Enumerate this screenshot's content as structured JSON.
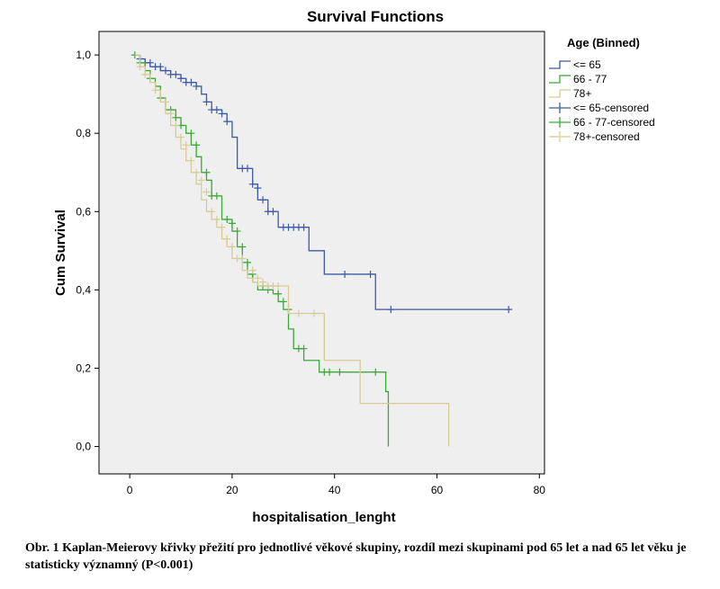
{
  "chart_data": {
    "type": "line",
    "title": "Survival Functions",
    "xlabel": "hospitalisation_lenght",
    "ylabel": "Cum Survival",
    "xlim": [
      -6,
      81
    ],
    "ylim": [
      -0.07,
      1.06
    ],
    "x_ticks": [
      0,
      20,
      40,
      60,
      80
    ],
    "x_tick_labels": [
      "0",
      "20",
      "40",
      "60",
      "80"
    ],
    "y_ticks": [
      0,
      0.2,
      0.4,
      0.6,
      0.8,
      1.0
    ],
    "y_tick_labels": [
      "0,0",
      "0,2",
      "0,4",
      "0,6",
      "0,8",
      "1,0"
    ],
    "legend_title": "Age (Binned)",
    "legend_position": "right",
    "legend": [
      {
        "label": "<= 65",
        "kind": "line",
        "color": "#3f5aa6"
      },
      {
        "label": "66 - 77",
        "kind": "line",
        "color": "#3aa935"
      },
      {
        "label": "78+",
        "kind": "line",
        "color": "#d8cc96"
      },
      {
        "label": "<= 65-censored",
        "kind": "plus",
        "color": "#3f5aa6"
      },
      {
        "label": "66 - 77-censored",
        "kind": "plus",
        "color": "#3aa935"
      },
      {
        "label": "78+-censored",
        "kind": "plus",
        "color": "#d8cc96"
      }
    ],
    "series": [
      {
        "name": "<= 65",
        "color": "#3f5aa6",
        "steps": [
          [
            1,
            1.0
          ],
          [
            2,
            0.99
          ],
          [
            3,
            0.98
          ],
          [
            4,
            0.97
          ],
          [
            6,
            0.96
          ],
          [
            8,
            0.95
          ],
          [
            10,
            0.94
          ],
          [
            11,
            0.93
          ],
          [
            13,
            0.92
          ],
          [
            14,
            0.9
          ],
          [
            15,
            0.88
          ],
          [
            16,
            0.86
          ],
          [
            18,
            0.85
          ],
          [
            19,
            0.83
          ],
          [
            20,
            0.79
          ],
          [
            21,
            0.71
          ],
          [
            24,
            0.67
          ],
          [
            25,
            0.63
          ],
          [
            27,
            0.6
          ],
          [
            29,
            0.56
          ],
          [
            35,
            0.5
          ],
          [
            38,
            0.44
          ],
          [
            48,
            0.35
          ],
          [
            74,
            0.35
          ]
        ],
        "censored": [
          [
            2,
            0.99
          ],
          [
            3,
            0.98
          ],
          [
            4,
            0.98
          ],
          [
            5,
            0.97
          ],
          [
            6,
            0.97
          ],
          [
            7,
            0.96
          ],
          [
            8,
            0.95
          ],
          [
            9,
            0.95
          ],
          [
            10,
            0.94
          ],
          [
            11,
            0.93
          ],
          [
            12,
            0.93
          ],
          [
            13,
            0.92
          ],
          [
            15,
            0.88
          ],
          [
            16,
            0.86
          ],
          [
            17,
            0.86
          ],
          [
            18,
            0.85
          ],
          [
            19,
            0.83
          ],
          [
            22,
            0.71
          ],
          [
            23,
            0.71
          ],
          [
            24,
            0.67
          ],
          [
            25,
            0.66
          ],
          [
            26,
            0.63
          ],
          [
            27,
            0.6
          ],
          [
            28,
            0.6
          ],
          [
            30,
            0.56
          ],
          [
            31,
            0.56
          ],
          [
            32,
            0.56
          ],
          [
            33,
            0.56
          ],
          [
            34,
            0.56
          ],
          [
            42,
            0.44
          ],
          [
            47,
            0.44
          ],
          [
            51,
            0.35
          ],
          [
            74,
            0.35
          ]
        ]
      },
      {
        "name": "66 - 77",
        "color": "#3aa935",
        "steps": [
          [
            1,
            1.0
          ],
          [
            2,
            0.98
          ],
          [
            3,
            0.96
          ],
          [
            4,
            0.94
          ],
          [
            5,
            0.92
          ],
          [
            6,
            0.89
          ],
          [
            7,
            0.86
          ],
          [
            9,
            0.84
          ],
          [
            10,
            0.82
          ],
          [
            11,
            0.8
          ],
          [
            12,
            0.77
          ],
          [
            13,
            0.74
          ],
          [
            14,
            0.7
          ],
          [
            15,
            0.68
          ],
          [
            16,
            0.64
          ],
          [
            18,
            0.58
          ],
          [
            20,
            0.55
          ],
          [
            21,
            0.51
          ],
          [
            22,
            0.47
          ],
          [
            23,
            0.44
          ],
          [
            24,
            0.42
          ],
          [
            25,
            0.4
          ],
          [
            28,
            0.39
          ],
          [
            29,
            0.37
          ],
          [
            30,
            0.35
          ],
          [
            31,
            0.3
          ],
          [
            32,
            0.25
          ],
          [
            34,
            0.22
          ],
          [
            37,
            0.19
          ],
          [
            50,
            0.14
          ],
          [
            50.5,
            0.0
          ]
        ],
        "censored": [
          [
            1,
            1.0
          ],
          [
            2,
            0.98
          ],
          [
            4,
            0.94
          ],
          [
            6,
            0.89
          ],
          [
            8,
            0.86
          ],
          [
            9,
            0.84
          ],
          [
            10,
            0.82
          ],
          [
            12,
            0.8
          ],
          [
            13,
            0.77
          ],
          [
            15,
            0.7
          ],
          [
            16,
            0.64
          ],
          [
            17,
            0.64
          ],
          [
            19,
            0.58
          ],
          [
            20,
            0.57
          ],
          [
            21,
            0.55
          ],
          [
            22,
            0.51
          ],
          [
            23,
            0.47
          ],
          [
            24,
            0.44
          ],
          [
            26,
            0.41
          ],
          [
            27,
            0.4
          ],
          [
            29,
            0.39
          ],
          [
            30,
            0.37
          ],
          [
            31,
            0.35
          ],
          [
            33,
            0.25
          ],
          [
            34,
            0.25
          ],
          [
            38,
            0.19
          ],
          [
            39,
            0.19
          ],
          [
            41,
            0.19
          ],
          [
            48,
            0.19
          ]
        ]
      },
      {
        "name": "78+",
        "color": "#d8cc96",
        "steps": [
          [
            1,
            1.0
          ],
          [
            2,
            0.97
          ],
          [
            3,
            0.95
          ],
          [
            4,
            0.93
          ],
          [
            5,
            0.91
          ],
          [
            6,
            0.88
          ],
          [
            7,
            0.85
          ],
          [
            8,
            0.82
          ],
          [
            9,
            0.79
          ],
          [
            10,
            0.76
          ],
          [
            11,
            0.73
          ],
          [
            12,
            0.7
          ],
          [
            13,
            0.67
          ],
          [
            14,
            0.63
          ],
          [
            15,
            0.6
          ],
          [
            16,
            0.58
          ],
          [
            17,
            0.56
          ],
          [
            18,
            0.53
          ],
          [
            19,
            0.51
          ],
          [
            20,
            0.48
          ],
          [
            22,
            0.45
          ],
          [
            23,
            0.43
          ],
          [
            24,
            0.42
          ],
          [
            25,
            0.41
          ],
          [
            31,
            0.34
          ],
          [
            38,
            0.22
          ],
          [
            45,
            0.11
          ],
          [
            62,
            0.11
          ],
          [
            62.3,
            0.0
          ]
        ],
        "censored": [
          [
            2,
            0.97
          ],
          [
            3,
            0.95
          ],
          [
            5,
            0.91
          ],
          [
            7,
            0.88
          ],
          [
            8,
            0.85
          ],
          [
            9,
            0.82
          ],
          [
            10,
            0.79
          ],
          [
            11,
            0.77
          ],
          [
            12,
            0.73
          ],
          [
            13,
            0.7
          ],
          [
            14,
            0.68
          ],
          [
            15,
            0.65
          ],
          [
            16,
            0.6
          ],
          [
            17,
            0.58
          ],
          [
            18,
            0.56
          ],
          [
            19,
            0.53
          ],
          [
            20,
            0.51
          ],
          [
            21,
            0.48
          ],
          [
            22,
            0.48
          ],
          [
            24,
            0.45
          ],
          [
            25,
            0.43
          ],
          [
            26,
            0.42
          ],
          [
            27,
            0.41
          ],
          [
            28,
            0.41
          ],
          [
            29,
            0.41
          ],
          [
            33,
            0.34
          ],
          [
            36,
            0.34
          ]
        ]
      }
    ]
  },
  "caption": "Obr. 1 Kaplan-Meierovy křivky přežití pro jednotlivé věkové skupiny, rozdíl mezi skupinami pod 65 let a nad 65 let věku je statisticky významný (P<0.001)"
}
